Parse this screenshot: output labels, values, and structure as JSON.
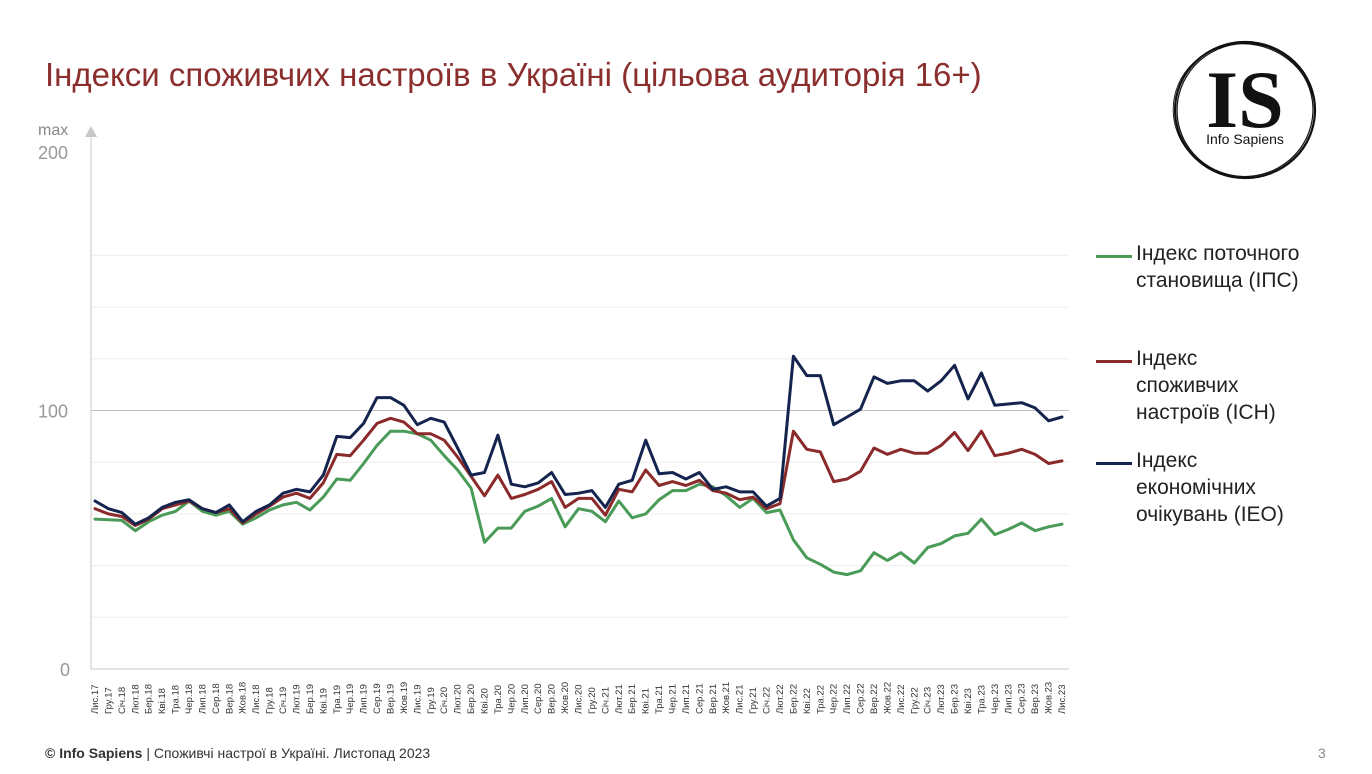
{
  "title": "Індекси споживчих настроїв в Україні (цільова аудиторія 16+)",
  "logo": {
    "letters": "IS",
    "name": "Info Sapiens"
  },
  "footer": {
    "brand": "© Info Sapiens",
    "text": " | Споживчі настрої в Україні. Листопад 2023"
  },
  "page_number": "3",
  "colors": {
    "title": "#8b2e2e",
    "ips": "#4a9a58",
    "ich": "#8b2a2a",
    "ieo": "#14244e",
    "axis": "#c8c8c8"
  },
  "chart_data": {
    "type": "line",
    "ylim": [
      0,
      200
    ],
    "yticks": [
      0,
      100,
      200
    ],
    "ymax_label": "max",
    "grid": true,
    "legend_position": "right",
    "x": [
      "Лис.17",
      "Гру.17",
      "Січ.18",
      "Лют.18",
      "Бер.18",
      "Кві.18",
      "Тра.18",
      "Чер.18",
      "Лип.18",
      "Сер.18",
      "Вер.18",
      "Жов.18",
      "Лис.18",
      "Гру.18",
      "Січ.19",
      "Лют.19",
      "Бер.19",
      "Кві.19",
      "Тра.19",
      "Чер.19",
      "Лип.19",
      "Сер.19",
      "Вер.19",
      "Жов.19",
      "Лис.19",
      "Гру.19",
      "Січ.20",
      "Лют.20",
      "Бер.20",
      "Кві.20",
      "Тра.20",
      "Чер.20",
      "Лип.20",
      "Сер.20",
      "Вер.20",
      "Жов.20",
      "Лис.20",
      "Гру.20",
      "Січ.21",
      "Лют.21",
      "Бер.21",
      "Кві.21",
      "Тра.21",
      "Чер.21",
      "Лип.21",
      "Сер.21",
      "Вер.21",
      "Жов.21",
      "Лис.21",
      "Гру.21",
      "Січ.22",
      "Лют.22",
      "Бер.22",
      "Кві.22",
      "Тра.22",
      "Чер.22",
      "Лип.22",
      "Сер.22",
      "Вер.22",
      "Жов.22",
      "Лис.22",
      "Гру.22",
      "Січ.23",
      "Лют.23",
      "Бер.23",
      "Кві.23",
      "Тра.23",
      "Чер.23",
      "Лип.23",
      "Сер.23",
      "Вер.23",
      "Жов.23",
      "Лис.23"
    ],
    "series": [
      {
        "name": "Індекс поточного\nстановища (ІПС)",
        "color": "#4a9a58",
        "values": [
          58,
          57.7,
          57.5,
          53.5,
          57,
          59.5,
          61,
          65,
          61,
          59.5,
          61,
          56,
          58.5,
          61.5,
          63.5,
          64.5,
          61.5,
          66.5,
          73.5,
          73,
          79.5,
          86.5,
          92,
          92,
          91,
          88.5,
          82.5,
          77,
          70,
          49,
          54.5,
          54.5,
          61,
          63,
          66,
          55,
          62,
          61,
          57,
          65,
          58.5,
          60,
          65.5,
          69,
          69,
          71.5,
          70.5,
          67,
          62.5,
          66,
          60.5,
          61.5,
          50,
          43,
          40.5,
          37.5,
          36.5,
          38,
          45,
          42,
          45,
          41,
          47,
          48.5,
          51.5,
          52.5,
          58,
          52,
          54,
          56.5,
          53.5,
          55,
          56
        ]
      },
      {
        "name": "Індекс\nспоживчих\nнастроїв (ICH)",
        "color": "#8b2a2a",
        "values": [
          62,
          60,
          59,
          55.5,
          58,
          62,
          63.5,
          65,
          62,
          60.5,
          62,
          56.5,
          60,
          63,
          66.5,
          68,
          66,
          72,
          83,
          82.5,
          88.5,
          95,
          97,
          95.5,
          91,
          91,
          88.5,
          82,
          74.5,
          67,
          75,
          66,
          67.5,
          69.5,
          72.5,
          62.5,
          66,
          66,
          59.5,
          69.5,
          68.5,
          77,
          71,
          72.5,
          71,
          73,
          69,
          68,
          65.5,
          66.5,
          62,
          64,
          92,
          85,
          84,
          72.5,
          73.5,
          76.5,
          85.5,
          83,
          85,
          83.5,
          83.5,
          86.5,
          91.5,
          84.5,
          92,
          82.5,
          83.5,
          85,
          83,
          79.5,
          80.5
        ]
      },
      {
        "name": "Індекс\nекономічних\nочікувань (IEO)",
        "color": "#14244e",
        "values": [
          65,
          62,
          60.5,
          56,
          58.5,
          62.5,
          64.5,
          65.5,
          62,
          60.5,
          63.5,
          57,
          61,
          63.5,
          68,
          69.5,
          68.5,
          75,
          90,
          89.5,
          95,
          105,
          105,
          102,
          94.5,
          97,
          95.5,
          85.5,
          75,
          76,
          90.5,
          71.5,
          70.5,
          72,
          76,
          67.5,
          68,
          69,
          62.5,
          71.5,
          73,
          88.5,
          75.5,
          76,
          73.5,
          76,
          69.5,
          70.5,
          68.5,
          68.5,
          63,
          66,
          121,
          113.5,
          113.5,
          94.5,
          97.5,
          100.5,
          113,
          110.5,
          111.5,
          111.5,
          107.5,
          111.5,
          117.5,
          104.5,
          114.5,
          102,
          102.5,
          103,
          101,
          96,
          97.5
        ]
      }
    ]
  }
}
